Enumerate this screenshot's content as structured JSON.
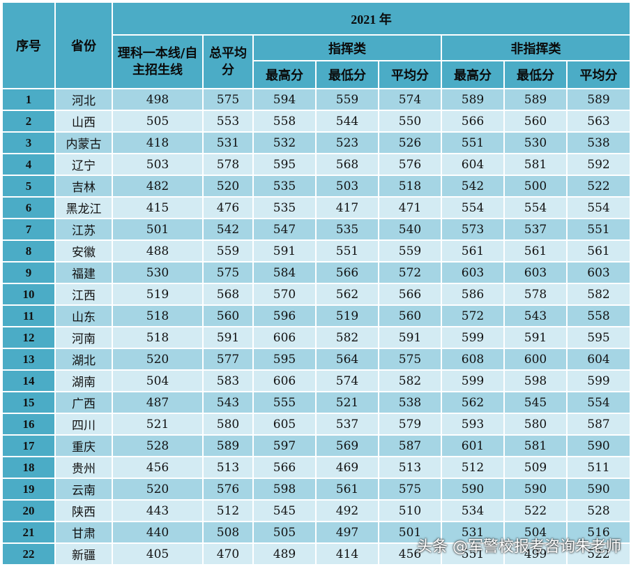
{
  "header": {
    "col_index": "序号",
    "col_province": "省份",
    "year": "2021 年",
    "col_cutoff": "理科一本线/自主招生线",
    "col_total_avg": "总平均分",
    "group_command": "指挥类",
    "group_noncommand": "非指挥类",
    "max": "最高分",
    "min": "最低分",
    "avg": "平均分"
  },
  "rows": [
    {
      "idx": "1",
      "province": "河北",
      "cutoff": "498",
      "total_avg": "575",
      "c_max": "594",
      "c_min": "559",
      "c_avg": "574",
      "n_max": "589",
      "n_min": "589",
      "n_avg": "589"
    },
    {
      "idx": "2",
      "province": "山西",
      "cutoff": "505",
      "total_avg": "553",
      "c_max": "558",
      "c_min": "544",
      "c_avg": "550",
      "n_max": "566",
      "n_min": "560",
      "n_avg": "563"
    },
    {
      "idx": "3",
      "province": "内蒙古",
      "cutoff": "418",
      "total_avg": "531",
      "c_max": "532",
      "c_min": "523",
      "c_avg": "526",
      "n_max": "551",
      "n_min": "530",
      "n_avg": "538"
    },
    {
      "idx": "4",
      "province": "辽宁",
      "cutoff": "503",
      "total_avg": "578",
      "c_max": "595",
      "c_min": "568",
      "c_avg": "576",
      "n_max": "604",
      "n_min": "581",
      "n_avg": "592"
    },
    {
      "idx": "5",
      "province": "吉林",
      "cutoff": "482",
      "total_avg": "520",
      "c_max": "535",
      "c_min": "503",
      "c_avg": "518",
      "n_max": "542",
      "n_min": "500",
      "n_avg": "522"
    },
    {
      "idx": "6",
      "province": "黑龙江",
      "cutoff": "415",
      "total_avg": "476",
      "c_max": "535",
      "c_min": "417",
      "c_avg": "471",
      "n_max": "554",
      "n_min": "554",
      "n_avg": "554"
    },
    {
      "idx": "7",
      "province": "江苏",
      "cutoff": "501",
      "total_avg": "542",
      "c_max": "547",
      "c_min": "535",
      "c_avg": "540",
      "n_max": "573",
      "n_min": "537",
      "n_avg": "551"
    },
    {
      "idx": "8",
      "province": "安徽",
      "cutoff": "488",
      "total_avg": "559",
      "c_max": "591",
      "c_min": "551",
      "c_avg": "559",
      "n_max": "561",
      "n_min": "561",
      "n_avg": "561"
    },
    {
      "idx": "9",
      "province": "福建",
      "cutoff": "530",
      "total_avg": "575",
      "c_max": "584",
      "c_min": "566",
      "c_avg": "572",
      "n_max": "603",
      "n_min": "603",
      "n_avg": "603"
    },
    {
      "idx": "10",
      "province": "江西",
      "cutoff": "519",
      "total_avg": "568",
      "c_max": "570",
      "c_min": "562",
      "c_avg": "566",
      "n_max": "586",
      "n_min": "578",
      "n_avg": "582"
    },
    {
      "idx": "11",
      "province": "山东",
      "cutoff": "518",
      "total_avg": "560",
      "c_max": "596",
      "c_min": "519",
      "c_avg": "560",
      "n_max": "572",
      "n_min": "543",
      "n_avg": "558"
    },
    {
      "idx": "12",
      "province": "河南",
      "cutoff": "518",
      "total_avg": "591",
      "c_max": "606",
      "c_min": "582",
      "c_avg": "591",
      "n_max": "599",
      "n_min": "591",
      "n_avg": "595"
    },
    {
      "idx": "13",
      "province": "湖北",
      "cutoff": "520",
      "total_avg": "577",
      "c_max": "595",
      "c_min": "564",
      "c_avg": "575",
      "n_max": "608",
      "n_min": "600",
      "n_avg": "604"
    },
    {
      "idx": "14",
      "province": "湖南",
      "cutoff": "504",
      "total_avg": "583",
      "c_max": "606",
      "c_min": "574",
      "c_avg": "582",
      "n_max": "599",
      "n_min": "598",
      "n_avg": "599"
    },
    {
      "idx": "15",
      "province": "广西",
      "cutoff": "487",
      "total_avg": "543",
      "c_max": "555",
      "c_min": "521",
      "c_avg": "538",
      "n_max": "562",
      "n_min": "545",
      "n_avg": "554"
    },
    {
      "idx": "16",
      "province": "四川",
      "cutoff": "521",
      "total_avg": "580",
      "c_max": "605",
      "c_min": "537",
      "c_avg": "579",
      "n_max": "593",
      "n_min": "580",
      "n_avg": "587"
    },
    {
      "idx": "17",
      "province": "重庆",
      "cutoff": "528",
      "total_avg": "589",
      "c_max": "597",
      "c_min": "569",
      "c_avg": "587",
      "n_max": "601",
      "n_min": "581",
      "n_avg": "590"
    },
    {
      "idx": "18",
      "province": "贵州",
      "cutoff": "456",
      "total_avg": "513",
      "c_max": "566",
      "c_min": "469",
      "c_avg": "513",
      "n_max": "512",
      "n_min": "509",
      "n_avg": "511"
    },
    {
      "idx": "19",
      "province": "云南",
      "cutoff": "520",
      "total_avg": "576",
      "c_max": "598",
      "c_min": "561",
      "c_avg": "575",
      "n_max": "590",
      "n_min": "590",
      "n_avg": "590"
    },
    {
      "idx": "20",
      "province": "陕西",
      "cutoff": "443",
      "total_avg": "512",
      "c_max": "545",
      "c_min": "492",
      "c_avg": "510",
      "n_max": "534",
      "n_min": "522",
      "n_avg": "528"
    },
    {
      "idx": "21",
      "province": "甘肃",
      "cutoff": "440",
      "total_avg": "508",
      "c_max": "505",
      "c_min": "497",
      "c_avg": "501",
      "n_max": "531",
      "n_min": "504",
      "n_avg": "516"
    },
    {
      "idx": "22",
      "province": "新疆",
      "cutoff": "405",
      "total_avg": "470",
      "c_max": "489",
      "c_min": "414",
      "c_avg": "456",
      "n_max": "551",
      "n_min": "499",
      "n_avg": "522"
    }
  ],
  "watermark": "头条 @军警校报考咨询朱老师"
}
